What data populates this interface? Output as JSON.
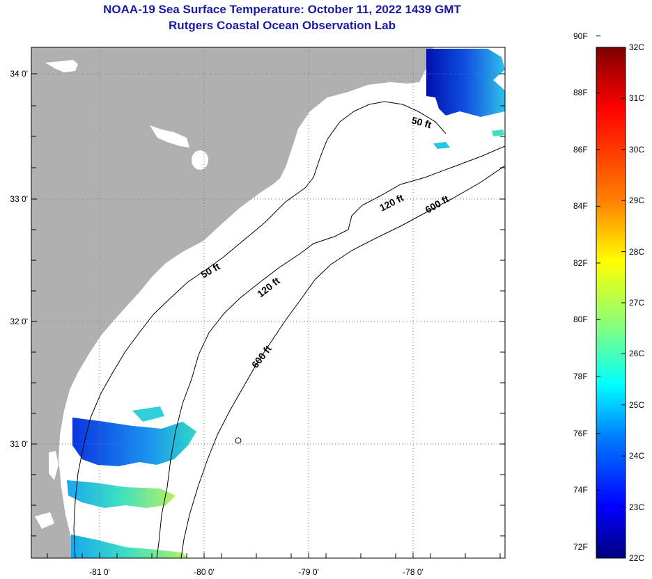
{
  "header": {
    "title": "NOAA-19 Sea Surface Temperature:  October 11, 2022 1439 GMT",
    "subtitle": "Rutgers Coastal Ocean Observation Lab"
  },
  "map": {
    "lon_labels": [
      "-81 0'",
      "-80 0'",
      "-79 0'",
      "-78 0'"
    ],
    "lat_labels": [
      "34 0'",
      "33 0'",
      "32 0'",
      "31 0'"
    ],
    "land_color": "#b0b0b0",
    "contours": [
      {
        "label": "50 ft",
        "at": "north"
      },
      {
        "label": "120 ft",
        "at": "north"
      },
      {
        "label": "600 ft",
        "at": "north"
      },
      {
        "label": "50 ft",
        "at": "south"
      },
      {
        "label": "120 ft",
        "at": "south"
      },
      {
        "label": "600 ft",
        "at": "south"
      }
    ]
  },
  "colorbar": {
    "fahrenheit_labels": [
      "90F",
      "88F",
      "86F",
      "84F",
      "82F",
      "80F",
      "78F",
      "76F",
      "74F",
      "72F"
    ],
    "celsius_labels": [
      "32C",
      "31C",
      "30C",
      "29C",
      "28C",
      "27C",
      "26C",
      "25C",
      "24C",
      "23C",
      "22C"
    ],
    "colors": [
      "#7f0000",
      "#ff0000",
      "#ff8000",
      "#ffff00",
      "#80ff80",
      "#00ffff",
      "#0080ff",
      "#0000ff",
      "#00007f"
    ]
  }
}
